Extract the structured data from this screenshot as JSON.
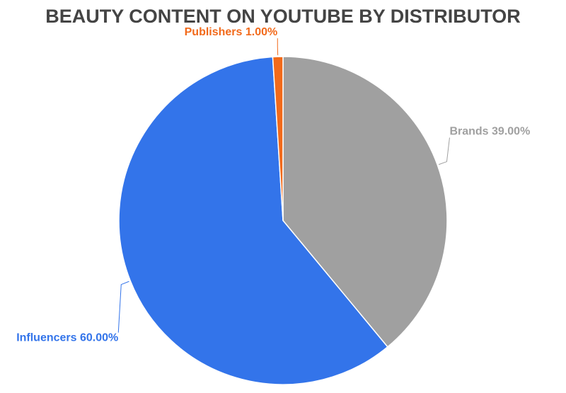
{
  "chart_data": {
    "type": "pie",
    "title": "BEAUTY CONTENT ON YOUTUBE BY DISTRIBUTOR",
    "categories": [
      "Brands",
      "Influencers",
      "Publishers"
    ],
    "values": [
      39,
      60,
      1
    ],
    "value_labels": [
      "39.00%",
      "60.00%",
      "1.00%"
    ],
    "colors": [
      "#a0a0a0",
      "#3374ea",
      "#f26a1b"
    ]
  }
}
